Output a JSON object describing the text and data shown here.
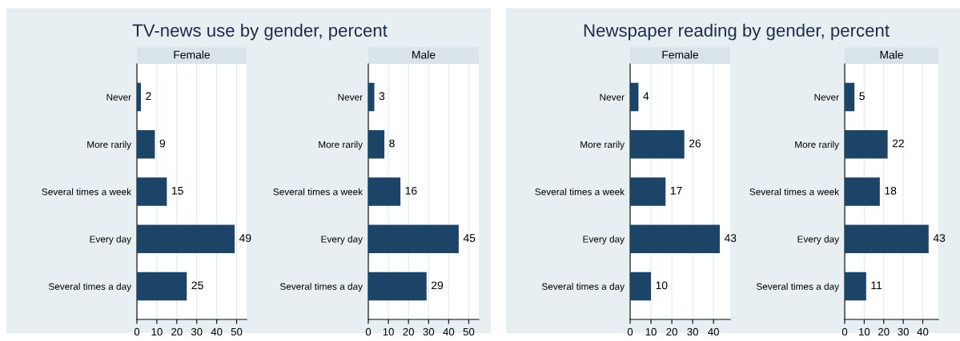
{
  "chart_data": [
    {
      "type": "bar",
      "orientation": "horizontal",
      "title": "TV-news use by gender, percent",
      "subtitle": "Female",
      "categories": [
        "Never",
        "More rarily",
        "Several times a week",
        "Every day",
        "Several times a day"
      ],
      "values": [
        2,
        9,
        15,
        49,
        25
      ],
      "color": "#1c4466",
      "xlim": [
        0,
        55
      ],
      "xticks": [
        0,
        10,
        20,
        30,
        40,
        50
      ],
      "grid": "x",
      "data_labels": true
    },
    {
      "type": "bar",
      "orientation": "horizontal",
      "subtitle": "Male",
      "categories": [
        "Never",
        "More rarily",
        "Several times a week",
        "Every day",
        "Several times a day"
      ],
      "values": [
        3,
        8,
        16,
        45,
        29
      ],
      "color": "#1c4466",
      "xlim": [
        0,
        55
      ],
      "xticks": [
        0,
        10,
        20,
        30,
        40,
        50
      ],
      "grid": "x",
      "data_labels": true
    },
    {
      "type": "bar",
      "orientation": "horizontal",
      "title": "Newspaper reading by gender, percent",
      "subtitle": "Female",
      "categories": [
        "Never",
        "More rarily",
        "Several times a week",
        "Every day",
        "Several times a day"
      ],
      "values": [
        4,
        26,
        17,
        43,
        10
      ],
      "color": "#1c4466",
      "xlim": [
        0,
        48
      ],
      "xticks": [
        0,
        10,
        20,
        30,
        40
      ],
      "grid": "x",
      "data_labels": true
    },
    {
      "type": "bar",
      "orientation": "horizontal",
      "subtitle": "Male",
      "categories": [
        "Never",
        "More rarily",
        "Several times a week",
        "Every day",
        "Several times a day"
      ],
      "values": [
        5,
        22,
        18,
        43,
        11
      ],
      "color": "#1c4466",
      "xlim": [
        0,
        48
      ],
      "xticks": [
        0,
        10,
        20,
        30,
        40
      ],
      "grid": "x",
      "data_labels": true
    }
  ]
}
